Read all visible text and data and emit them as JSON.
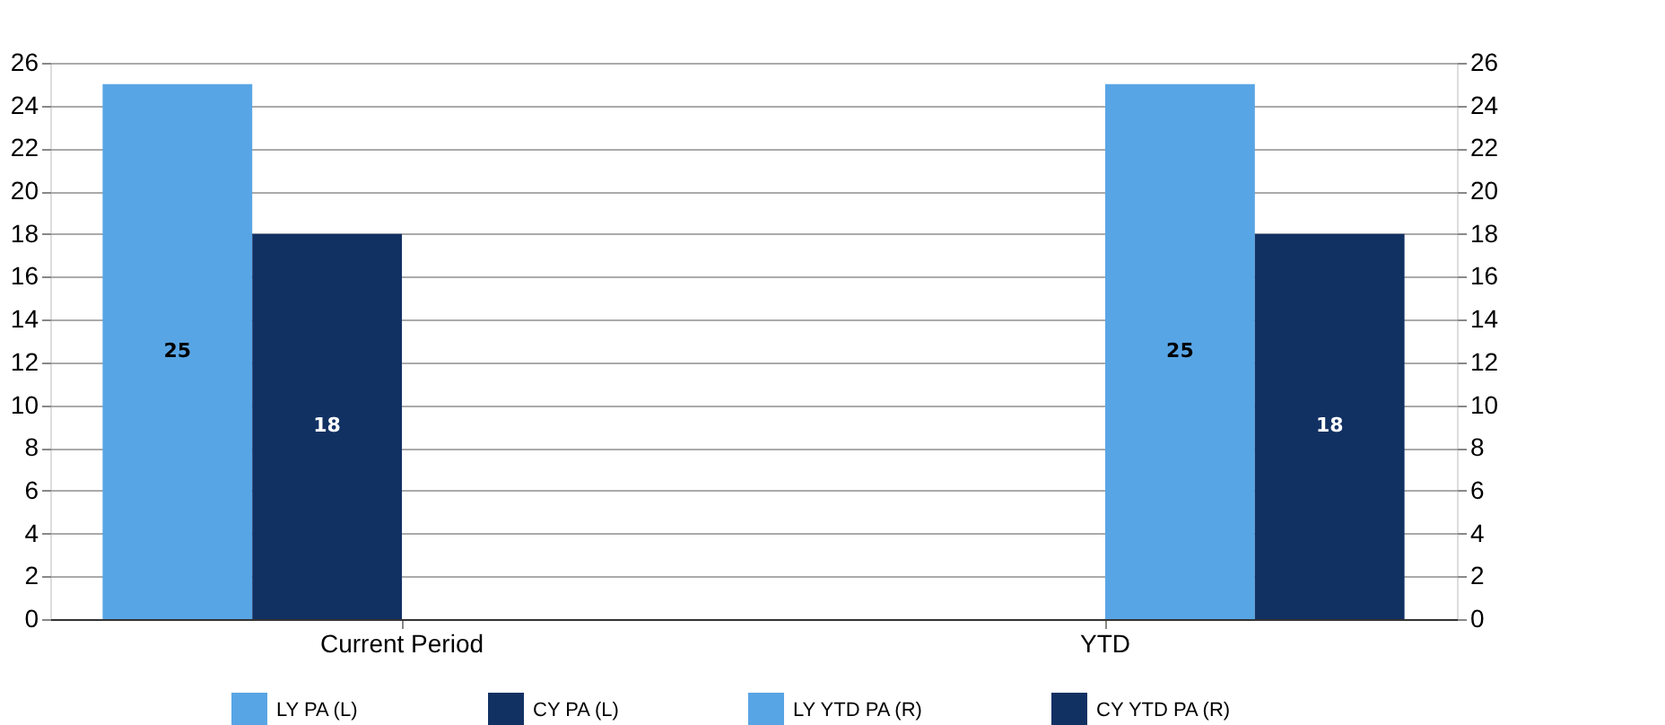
{
  "chart_data": {
    "type": "bar",
    "categories": [
      "Current Period",
      "YTD"
    ],
    "series": [
      {
        "name": "LY PA (L)",
        "color": "#58a5e5",
        "values": [
          25,
          null
        ]
      },
      {
        "name": "CY PA (L)",
        "color": "#123163",
        "values": [
          18,
          null
        ]
      },
      {
        "name": "LY YTD PA (R)",
        "color": "#58a5e5",
        "values": [
          null,
          25
        ],
        "axis": "y2"
      },
      {
        "name": "CY YTD PA (R)",
        "color": "#123163",
        "values": [
          null,
          18
        ],
        "axis": "y2"
      }
    ],
    "ylim": [
      0,
      26
    ],
    "yticks": [
      0,
      2,
      4,
      6,
      8,
      10,
      12,
      14,
      16,
      18,
      20,
      22,
      24,
      26
    ],
    "y2lim": [
      0,
      26
    ],
    "y2ticks": [
      0,
      2,
      4,
      6,
      8,
      10,
      12,
      14,
      16,
      18,
      20,
      22,
      24,
      26
    ],
    "grid": "y",
    "legend": "bottom",
    "data_labels": true
  }
}
